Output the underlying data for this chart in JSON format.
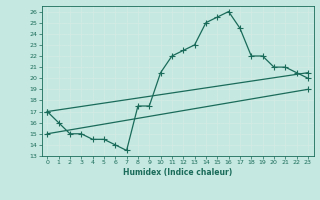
{
  "xlabel": "Humidex (Indice chaleur)",
  "bg_color": "#c5e8e0",
  "grid_color": "#b0d8ce",
  "line_color": "#1a6b5a",
  "xlim": [
    -0.5,
    23.5
  ],
  "ylim": [
    13,
    26.5
  ],
  "xticks": [
    0,
    1,
    2,
    3,
    4,
    5,
    6,
    7,
    8,
    9,
    10,
    11,
    12,
    13,
    14,
    15,
    16,
    17,
    18,
    19,
    20,
    21,
    22,
    23
  ],
  "yticks": [
    13,
    14,
    15,
    16,
    17,
    18,
    19,
    20,
    21,
    22,
    23,
    24,
    25,
    26
  ],
  "line1_x": [
    0,
    1,
    2,
    3,
    4,
    5,
    6,
    7,
    8,
    9,
    10,
    11,
    12,
    13,
    14,
    15,
    16,
    17,
    18,
    19,
    20,
    21,
    22,
    23
  ],
  "line1_y": [
    17,
    16,
    15,
    15,
    14.5,
    14.5,
    14,
    13.5,
    17.5,
    17.5,
    20.5,
    22,
    22.5,
    23,
    25,
    25.5,
    26,
    24.5,
    22,
    22,
    21,
    21,
    20.5,
    20
  ],
  "line2_x": [
    0,
    23
  ],
  "line2_y": [
    17,
    20.5
  ],
  "line3_x": [
    0,
    23
  ],
  "line3_y": [
    15,
    19
  ]
}
